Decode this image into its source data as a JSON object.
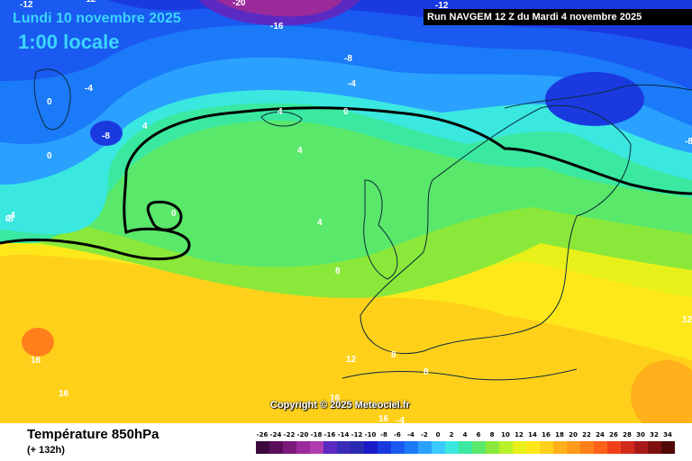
{
  "header": {
    "date": "Lundi 10 novembre 2025",
    "time": "1:00 locale",
    "run": "Run NAVGEM 12 Z du Mardi 4 novembre 2025"
  },
  "map": {
    "copyright": "Copyright © 2025 Meteociel.fr",
    "isotherm_labels": [
      "-20",
      "-12",
      "-12",
      "-16",
      "-12",
      "-8",
      "-4",
      "-4",
      "0",
      "0",
      "-8",
      "4",
      "0",
      "-4",
      "4",
      "4",
      "-8",
      "0",
      "0",
      "-4",
      "4",
      "8",
      "12",
      "16",
      "16",
      "8",
      "8",
      "12",
      "16",
      "16",
      "-8"
    ]
  },
  "footer": {
    "parameter": "Température 850hPa",
    "forecast_hour": "(+ 132h)"
  },
  "legend": {
    "values": [
      "-26",
      "-24",
      "-22",
      "-20",
      "-18",
      "-16",
      "-14",
      "-12",
      "-10",
      "-8",
      "-6",
      "-4",
      "-2",
      "0",
      "2",
      "4",
      "6",
      "8",
      "10",
      "12",
      "14",
      "16",
      "18",
      "20",
      "22",
      "24",
      "26",
      "28",
      "30",
      "32",
      "34"
    ],
    "colors": [
      "#3d0a3d",
      "#5a0f5a",
      "#7a1a7a",
      "#9a2a9a",
      "#b03db0",
      "#5a2ac2",
      "#3a2ab8",
      "#2a2ab0",
      "#1a1ac8",
      "#1a3ae0",
      "#1a5af0",
      "#1a7af8",
      "#2aa0ff",
      "#3ac8ff",
      "#3ae8e0",
      "#3ae8a0",
      "#5ae86a",
      "#8ae83a",
      "#b8f02a",
      "#e8f01a",
      "#ffe81a",
      "#ffd01a",
      "#ffb01a",
      "#ff9a1a",
      "#ff801a",
      "#ff601a",
      "#f0401a",
      "#d02a1a",
      "#a81a1a",
      "#801010",
      "#500808"
    ]
  }
}
